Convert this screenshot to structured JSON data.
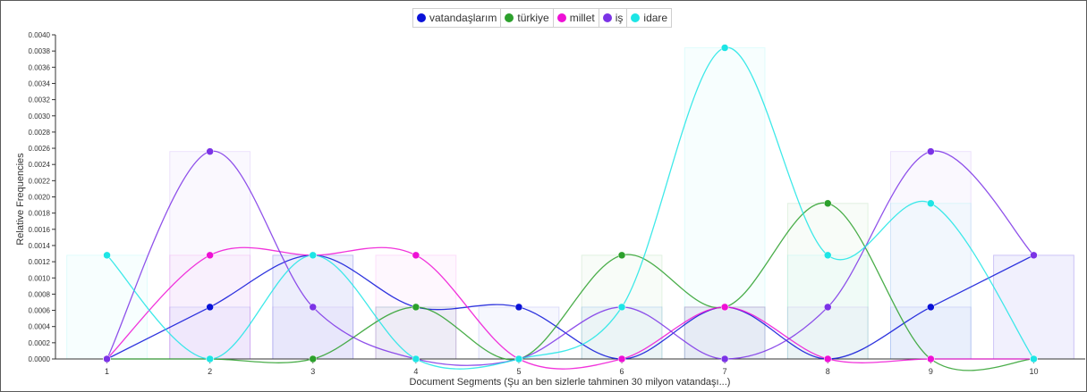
{
  "chart_data": {
    "type": "line",
    "xlabel": "Document Segments (Şu an ben sizlerle tahminen 30 milyon vatandaşı...)",
    "ylabel": "Relative Frequencies",
    "x": [
      1,
      2,
      3,
      4,
      5,
      6,
      7,
      8,
      9,
      10
    ],
    "ylim": [
      0,
      0.004
    ],
    "yticks": [
      "0.0000",
      "0.0002",
      "0.0004",
      "0.0006",
      "0.0008",
      "0.0010",
      "0.0012",
      "0.0014",
      "0.0016",
      "0.0018",
      "0.0020",
      "0.0022",
      "0.0024",
      "0.0026",
      "0.0028",
      "0.0030",
      "0.0032",
      "0.0034",
      "0.0036",
      "0.0038",
      "0.0040"
    ],
    "legend_position": "top-center",
    "grid": false,
    "series": [
      {
        "name": "vatandaşlarım",
        "color": "#0a12d8",
        "values": [
          0,
          0.00064,
          0.00128,
          0.00064,
          0.00064,
          0,
          0.00064,
          0,
          0.00064,
          0.00128
        ]
      },
      {
        "name": "türkiye",
        "color": "#2ca02c",
        "values": [
          0,
          0,
          0,
          0.00064,
          0,
          0.00128,
          0.00064,
          0.00192,
          0,
          0
        ]
      },
      {
        "name": "millet",
        "color": "#ee10d5",
        "values": [
          0,
          0.00128,
          0.00128,
          0.00128,
          0,
          0,
          0.00064,
          0,
          0,
          0
        ]
      },
      {
        "name": "iş",
        "color": "#7b33e6",
        "values": [
          0,
          0.00256,
          0.00064,
          0,
          0,
          0.00064,
          0,
          0.00064,
          0.00256,
          0.00128
        ]
      },
      {
        "name": "idare",
        "color": "#1de5e5",
        "values": [
          0.00128,
          0,
          0.00128,
          0,
          0,
          0.00064,
          0.00384,
          0.00128,
          0.00192,
          0
        ]
      }
    ]
  }
}
